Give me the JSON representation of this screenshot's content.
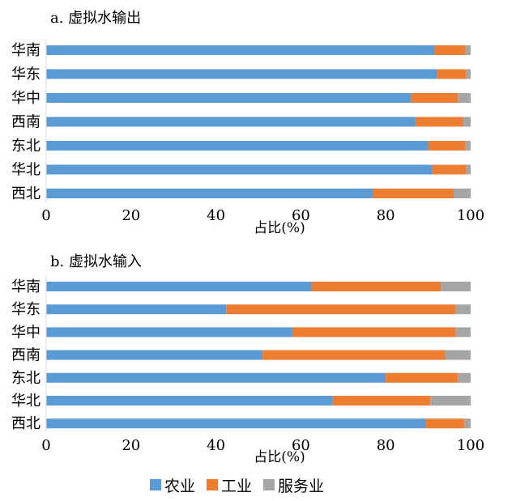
{
  "chart_data": [
    {
      "type": "bar",
      "orientation": "horizontal",
      "stacked": true,
      "title": "a. 虚拟水输出",
      "xlabel": "占比(%)",
      "xlim": [
        0,
        100
      ],
      "xticks": [
        "0",
        "20",
        "40",
        "60",
        "80",
        "100"
      ],
      "categories": [
        "华南",
        "华东",
        "华中",
        "西南",
        "东北",
        "华北",
        "西北"
      ],
      "series": [
        {
          "name": "农业",
          "values": [
            91.5,
            92.0,
            86.0,
            87.0,
            90.0,
            91.0,
            77.0
          ]
        },
        {
          "name": "工业",
          "values": [
            7.3,
            7.0,
            11.0,
            11.3,
            8.8,
            8.0,
            19.0
          ]
        },
        {
          "name": "服务业",
          "values": [
            1.2,
            1.0,
            3.0,
            1.7,
            1.2,
            1.0,
            4.0
          ]
        }
      ],
      "grid": false,
      "legend": "bottom"
    },
    {
      "type": "bar",
      "orientation": "horizontal",
      "stacked": true,
      "title": "b. 虚拟水输入",
      "xlabel": "占比(%)",
      "xlim": [
        0,
        100
      ],
      "xticks": [
        "0",
        "20",
        "40",
        "60",
        "80",
        "100"
      ],
      "categories": [
        "华南",
        "华东",
        "华中",
        "西南",
        "东北",
        "华北",
        "西北"
      ],
      "series": [
        {
          "name": "农业",
          "values": [
            62.5,
            42.5,
            58.0,
            51.0,
            80.0,
            67.5,
            89.5
          ]
        },
        {
          "name": "工业",
          "values": [
            30.5,
            54.0,
            38.5,
            43.0,
            17.0,
            23.0,
            9.0
          ]
        },
        {
          "name": "服务业",
          "values": [
            7.0,
            3.5,
            3.5,
            6.0,
            3.0,
            9.5,
            1.5
          ]
        }
      ],
      "grid": false,
      "legend": "bottom"
    }
  ],
  "legend": [
    {
      "label": "农业",
      "color": "#5b9bd5"
    },
    {
      "label": "工业",
      "color": "#ed7d31"
    },
    {
      "label": "服务业",
      "color": "#a5a5a5"
    }
  ],
  "colors": {
    "agriculture": "#5b9bd5",
    "industry": "#ed7d31",
    "service": "#a5a5a5"
  }
}
